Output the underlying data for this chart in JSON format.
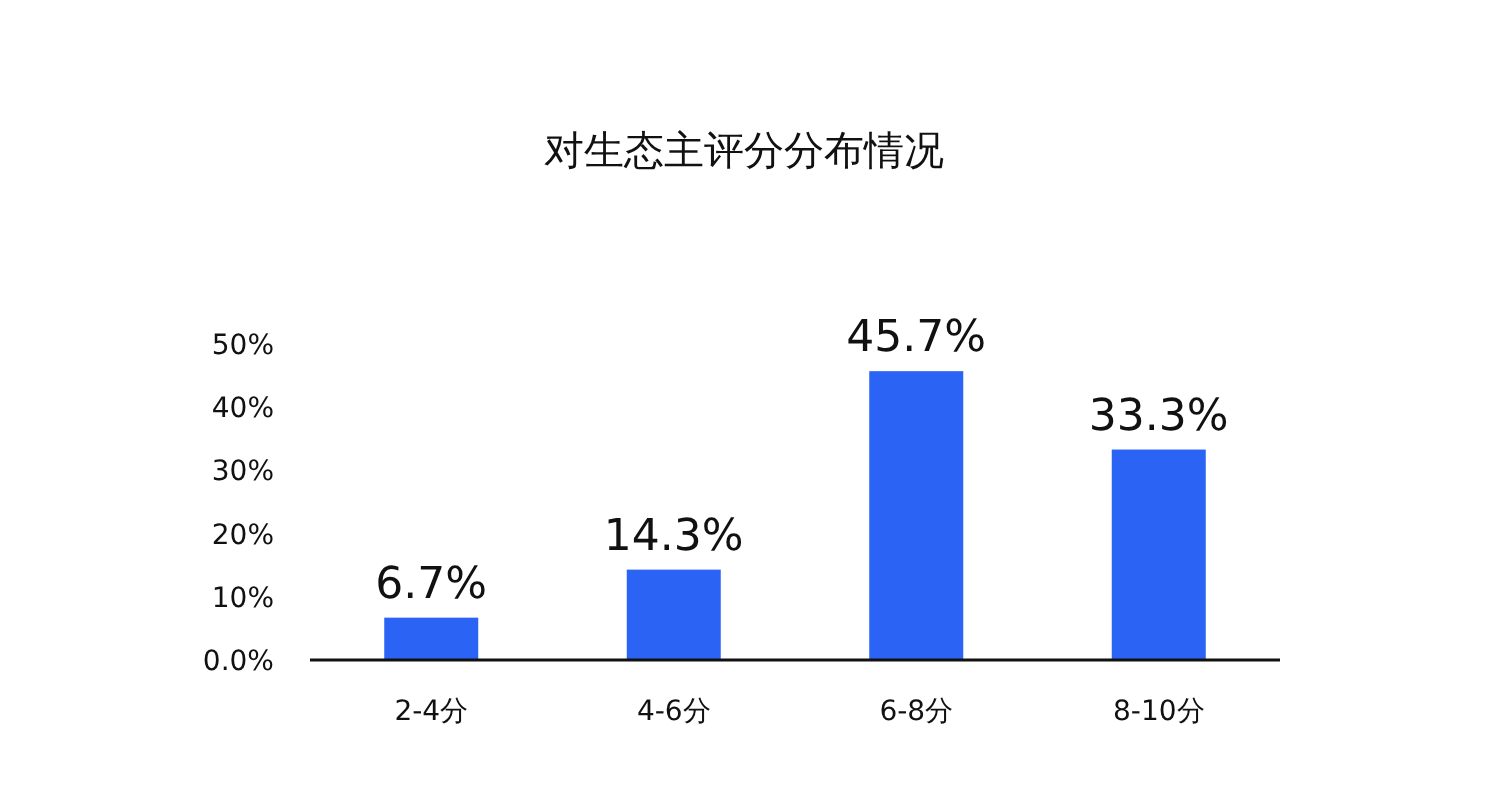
{
  "chart_data": {
    "type": "bar",
    "title": "对生态主评分分布情况",
    "categories": [
      "2-4分",
      "4-6分",
      "6-8分",
      "8-10分"
    ],
    "values": [
      6.7,
      14.3,
      45.7,
      33.3
    ],
    "value_labels": [
      "6.7%",
      "14.3%",
      "45.7%",
      "33.3%"
    ],
    "color": "#2b63f5",
    "ylim": [
      0,
      50
    ],
    "yticks": [
      {
        "value": 0,
        "label": "0.0%"
      },
      {
        "value": 10,
        "label": "10%"
      },
      {
        "value": 20,
        "label": "20%"
      },
      {
        "value": 30,
        "label": "30%"
      },
      {
        "value": 40,
        "label": "40%"
      },
      {
        "value": 50,
        "label": "50%"
      }
    ],
    "grid": false
  }
}
